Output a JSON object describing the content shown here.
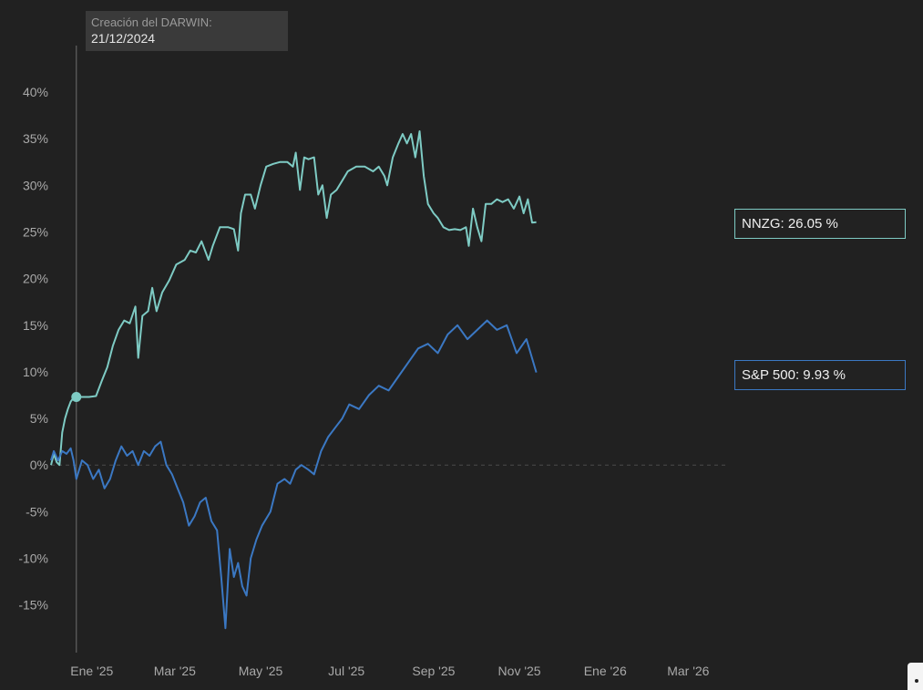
{
  "chart_data": {
    "type": "line",
    "title": "",
    "xlabel": "",
    "ylabel": "",
    "ylim": [
      -20,
      43
    ],
    "y_ticks": [
      {
        "value": 40,
        "label": "40%"
      },
      {
        "value": 35,
        "label": "35%"
      },
      {
        "value": 30,
        "label": "30%"
      },
      {
        "value": 25,
        "label": "25%"
      },
      {
        "value": 20,
        "label": "20%"
      },
      {
        "value": 15,
        "label": "15%"
      },
      {
        "value": 10,
        "label": "10%"
      },
      {
        "value": 5,
        "label": "5%"
      },
      {
        "value": 0,
        "label": "0%"
      },
      {
        "value": -5,
        "label": "-5%"
      },
      {
        "value": -10,
        "label": "-10%"
      },
      {
        "value": -15,
        "label": "-15%"
      }
    ],
    "x_ticks": [
      {
        "date": "2025-01-01",
        "label": "Ene '25"
      },
      {
        "date": "2025-03-01",
        "label": "Mar '25"
      },
      {
        "date": "2025-05-01",
        "label": "May '25"
      },
      {
        "date": "2025-07-01",
        "label": "Jul '25"
      },
      {
        "date": "2025-09-01",
        "label": "Sep '25"
      },
      {
        "date": "2025-11-01",
        "label": "Nov '25"
      },
      {
        "date": "2026-01-01",
        "label": "Ene '26"
      },
      {
        "date": "2026-03-01",
        "label": "Mar '26"
      }
    ],
    "xlim": [
      "2024-12-03",
      "2026-03-28"
    ],
    "grid": false,
    "zero_line": true,
    "event": {
      "date": "2024-12-21",
      "title": "Creación del DARWIN:",
      "label": "21/12/2024",
      "value": 7.3
    },
    "series": [
      {
        "name": "NNZG",
        "color": "#7ecbc4",
        "last_label": "NNZG: 26.05 %",
        "points": [
          [
            "2024-12-03",
            0
          ],
          [
            "2024-12-05",
            1.2
          ],
          [
            "2024-12-07",
            0.3
          ],
          [
            "2024-12-09",
            0
          ],
          [
            "2024-12-11",
            3.5
          ],
          [
            "2024-12-13",
            5
          ],
          [
            "2024-12-15",
            6
          ],
          [
            "2024-12-17",
            6.8
          ],
          [
            "2024-12-19",
            7.2
          ],
          [
            "2024-12-21",
            7.3
          ],
          [
            "2024-12-24",
            7.3
          ],
          [
            "2024-12-30",
            7.3
          ],
          [
            "2025-01-04",
            7.4
          ],
          [
            "2025-01-08",
            9
          ],
          [
            "2025-01-12",
            10.5
          ],
          [
            "2025-01-16",
            12.8
          ],
          [
            "2025-01-20",
            14.5
          ],
          [
            "2025-01-24",
            15.5
          ],
          [
            "2025-01-28",
            15.2
          ],
          [
            "2025-02-01",
            17
          ],
          [
            "2025-02-03",
            11.5
          ],
          [
            "2025-02-06",
            16
          ],
          [
            "2025-02-10",
            16.5
          ],
          [
            "2025-02-13",
            19
          ],
          [
            "2025-02-16",
            16.5
          ],
          [
            "2025-02-20",
            18.5
          ],
          [
            "2025-02-25",
            19.8
          ],
          [
            "2025-03-02",
            21.5
          ],
          [
            "2025-03-08",
            22
          ],
          [
            "2025-03-12",
            23
          ],
          [
            "2025-03-16",
            22.8
          ],
          [
            "2025-03-20",
            24
          ],
          [
            "2025-03-25",
            22
          ],
          [
            "2025-03-28",
            23.5
          ],
          [
            "2025-04-02",
            25.5
          ],
          [
            "2025-04-08",
            25.5
          ],
          [
            "2025-04-12",
            25.3
          ],
          [
            "2025-04-15",
            23
          ],
          [
            "2025-04-17",
            27
          ],
          [
            "2025-04-20",
            29
          ],
          [
            "2025-04-24",
            29
          ],
          [
            "2025-04-27",
            27.5
          ],
          [
            "2025-05-01",
            30
          ],
          [
            "2025-05-05",
            32
          ],
          [
            "2025-05-10",
            32.3
          ],
          [
            "2025-05-15",
            32.5
          ],
          [
            "2025-05-20",
            32.5
          ],
          [
            "2025-05-24",
            32
          ],
          [
            "2025-05-26",
            33.5
          ],
          [
            "2025-05-29",
            29.5
          ],
          [
            "2025-06-01",
            33
          ],
          [
            "2025-06-04",
            32.8
          ],
          [
            "2025-06-08",
            33
          ],
          [
            "2025-06-11",
            29
          ],
          [
            "2025-06-14",
            30
          ],
          [
            "2025-06-17",
            26.5
          ],
          [
            "2025-06-20",
            29
          ],
          [
            "2025-06-24",
            29.5
          ],
          [
            "2025-06-28",
            30.5
          ],
          [
            "2025-07-02",
            31.5
          ],
          [
            "2025-07-08",
            32
          ],
          [
            "2025-07-14",
            32
          ],
          [
            "2025-07-20",
            31.5
          ],
          [
            "2025-07-24",
            32
          ],
          [
            "2025-07-28",
            31
          ],
          [
            "2025-07-30",
            30
          ],
          [
            "2025-08-03",
            33
          ],
          [
            "2025-08-07",
            34.5
          ],
          [
            "2025-08-10",
            35.5
          ],
          [
            "2025-08-13",
            34.5
          ],
          [
            "2025-08-16",
            35.5
          ],
          [
            "2025-08-19",
            33
          ],
          [
            "2025-08-22",
            35.8
          ],
          [
            "2025-08-25",
            31
          ],
          [
            "2025-08-28",
            28
          ],
          [
            "2025-09-01",
            27
          ],
          [
            "2025-09-04",
            26.5
          ],
          [
            "2025-09-08",
            25.5
          ],
          [
            "2025-09-12",
            25.2
          ],
          [
            "2025-09-16",
            25.3
          ],
          [
            "2025-09-20",
            25.2
          ],
          [
            "2025-09-24",
            25.5
          ],
          [
            "2025-09-26",
            23.5
          ],
          [
            "2025-09-29",
            27.5
          ],
          [
            "2025-10-02",
            25.5
          ],
          [
            "2025-10-05",
            24
          ],
          [
            "2025-10-08",
            28
          ],
          [
            "2025-10-12",
            28
          ],
          [
            "2025-10-16",
            28.5
          ],
          [
            "2025-10-20",
            28.2
          ],
          [
            "2025-10-24",
            28.5
          ],
          [
            "2025-10-28",
            27.5
          ],
          [
            "2025-11-01",
            28.8
          ],
          [
            "2025-11-04",
            27
          ],
          [
            "2025-11-07",
            28.5
          ],
          [
            "2025-11-10",
            26
          ],
          [
            "2025-11-13",
            26.05
          ]
        ]
      },
      {
        "name": "S&P 500",
        "color": "#3b78c3",
        "last_label": "S&P 500: 9.93 %",
        "points": [
          [
            "2024-12-03",
            0.5
          ],
          [
            "2024-12-05",
            1.5
          ],
          [
            "2024-12-08",
            0.5
          ],
          [
            "2024-12-11",
            1.5
          ],
          [
            "2024-12-14",
            1.2
          ],
          [
            "2024-12-17",
            1.8
          ],
          [
            "2024-12-19",
            0.5
          ],
          [
            "2024-12-21",
            -1.5
          ],
          [
            "2024-12-25",
            0.5
          ],
          [
            "2024-12-29",
            0
          ],
          [
            "2025-01-02",
            -1.5
          ],
          [
            "2025-01-06",
            -0.5
          ],
          [
            "2025-01-10",
            -2.5
          ],
          [
            "2025-01-14",
            -1.5
          ],
          [
            "2025-01-18",
            0.5
          ],
          [
            "2025-01-22",
            2
          ],
          [
            "2025-01-26",
            1
          ],
          [
            "2025-01-30",
            1.5
          ],
          [
            "2025-02-03",
            0
          ],
          [
            "2025-02-07",
            1.5
          ],
          [
            "2025-02-11",
            1
          ],
          [
            "2025-02-15",
            2
          ],
          [
            "2025-02-19",
            2.5
          ],
          [
            "2025-02-23",
            0
          ],
          [
            "2025-02-27",
            -1
          ],
          [
            "2025-03-03",
            -2.5
          ],
          [
            "2025-03-07",
            -4
          ],
          [
            "2025-03-11",
            -6.5
          ],
          [
            "2025-03-15",
            -5.5
          ],
          [
            "2025-03-19",
            -4
          ],
          [
            "2025-03-23",
            -3.5
          ],
          [
            "2025-03-27",
            -6
          ],
          [
            "2025-03-31",
            -7
          ],
          [
            "2025-04-03",
            -12
          ],
          [
            "2025-04-06",
            -17.5
          ],
          [
            "2025-04-09",
            -9
          ],
          [
            "2025-04-12",
            -12
          ],
          [
            "2025-04-15",
            -10.5
          ],
          [
            "2025-04-18",
            -13
          ],
          [
            "2025-04-21",
            -14
          ],
          [
            "2025-04-24",
            -10
          ],
          [
            "2025-04-28",
            -8
          ],
          [
            "2025-05-02",
            -6.5
          ],
          [
            "2025-05-08",
            -5
          ],
          [
            "2025-05-13",
            -2
          ],
          [
            "2025-05-18",
            -1.5
          ],
          [
            "2025-05-22",
            -2
          ],
          [
            "2025-05-26",
            -0.5
          ],
          [
            "2025-05-30",
            0
          ],
          [
            "2025-06-04",
            -0.5
          ],
          [
            "2025-06-08",
            -1
          ],
          [
            "2025-06-13",
            1.5
          ],
          [
            "2025-06-18",
            3
          ],
          [
            "2025-06-23",
            4
          ],
          [
            "2025-06-28",
            5
          ],
          [
            "2025-07-03",
            6.5
          ],
          [
            "2025-07-10",
            6
          ],
          [
            "2025-07-17",
            7.5
          ],
          [
            "2025-07-24",
            8.5
          ],
          [
            "2025-07-31",
            8
          ],
          [
            "2025-08-07",
            9.5
          ],
          [
            "2025-08-14",
            11
          ],
          [
            "2025-08-21",
            12.5
          ],
          [
            "2025-08-28",
            13
          ],
          [
            "2025-09-04",
            12
          ],
          [
            "2025-09-11",
            14
          ],
          [
            "2025-09-18",
            15
          ],
          [
            "2025-09-25",
            13.5
          ],
          [
            "2025-10-02",
            14.5
          ],
          [
            "2025-10-09",
            15.5
          ],
          [
            "2025-10-16",
            14.5
          ],
          [
            "2025-10-23",
            15
          ],
          [
            "2025-10-30",
            12
          ],
          [
            "2025-11-06",
            13.5
          ],
          [
            "2025-11-13",
            9.93
          ]
        ]
      }
    ]
  }
}
